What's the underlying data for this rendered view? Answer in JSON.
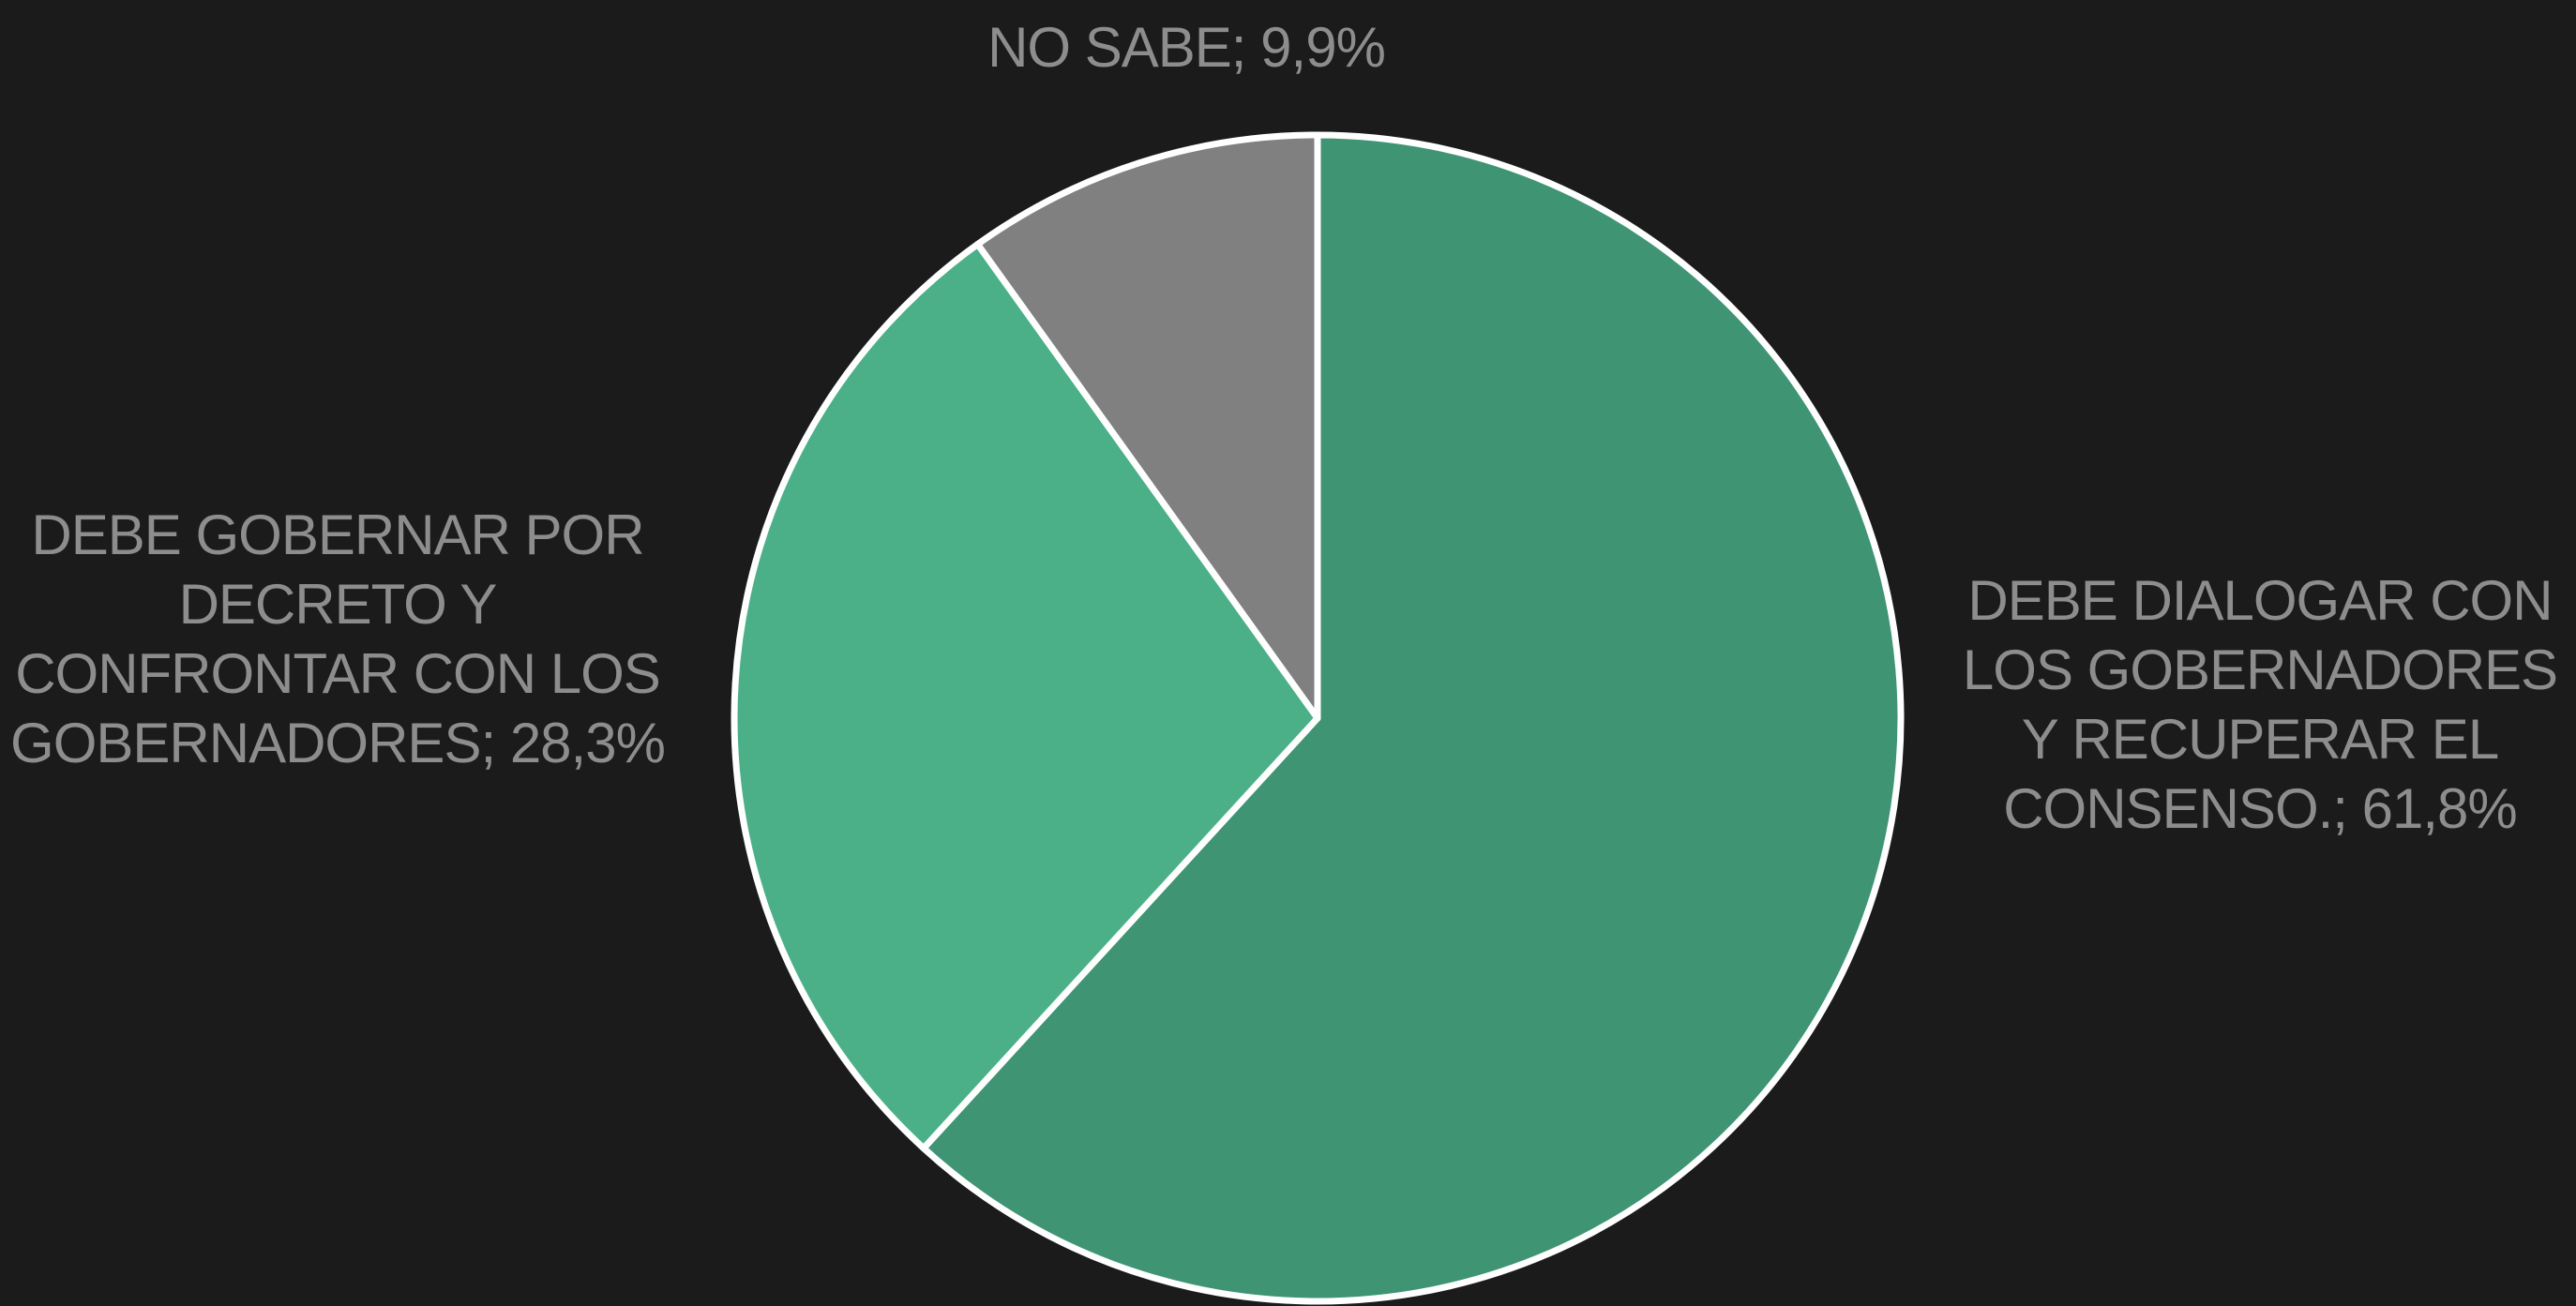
{
  "chart_data": {
    "type": "pie",
    "categories": [
      "DEBE DIALOGAR CON LOS GOBERNADORES Y RECUPERAR EL CONSENSO.;",
      "DEBE GOBERNAR POR DECRETO Y CONFRONTAR CON LOS GOBERNADORES;",
      "NO SABE;"
    ],
    "values": [
      61.8,
      28.3,
      9.9
    ],
    "value_labels": [
      "61,8%",
      "28,3%",
      "9,9%"
    ],
    "colors": [
      "#3f9474",
      "#4bb088",
      "#808080"
    ]
  }
}
